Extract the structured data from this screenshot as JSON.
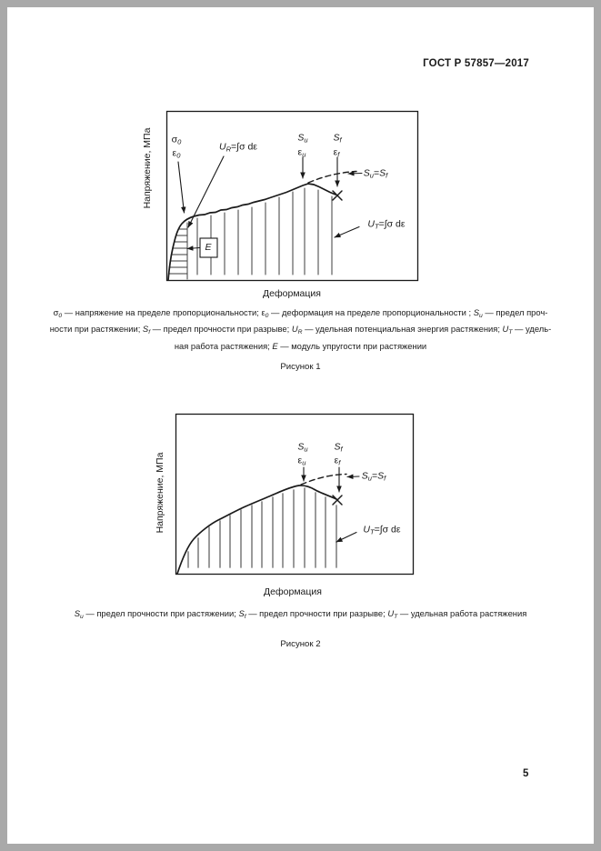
{
  "colors": {
    "surround": "#a9a9a9",
    "page_background": "#ffffff",
    "ink": "#1a1a1a",
    "hatch_figure1": "#3c3c3c",
    "hatch_figure2": "#8f8f8f"
  },
  "header": {
    "title": "ГОСТ Р 57857—2017"
  },
  "footer": {
    "page_number": "5"
  },
  "figure1": {
    "y_axis_label": "Напряжение, МПа",
    "x_axis_label": "Деформация",
    "figure_label": "Рисунок 1",
    "annotations": {
      "sigma0": [
        {
          "t": "σ"
        },
        {
          "t": "0",
          "s": 1
        }
      ],
      "eps0": [
        {
          "t": "ε"
        },
        {
          "t": "0",
          "s": 1
        }
      ],
      "ur_formula": [
        {
          "t": "U",
          "i": 1
        },
        {
          "t": "R",
          "s": 1
        },
        {
          "t": "=∫σ d"
        },
        {
          "t": "ε"
        }
      ],
      "su": [
        {
          "t": "S",
          "i": 1
        },
        {
          "t": "u",
          "s": 1
        }
      ],
      "eps_u": [
        {
          "t": "ε"
        },
        {
          "t": "u",
          "s": 1
        }
      ],
      "sf": [
        {
          "t": "S",
          "i": 1
        },
        {
          "t": "f",
          "s": 1
        }
      ],
      "eps_f": [
        {
          "t": "ε"
        },
        {
          "t": "f",
          "s": 1
        }
      ],
      "su_eq_sf": [
        {
          "t": "S",
          "i": 1
        },
        {
          "t": "u",
          "s": 1
        },
        {
          "t": "="
        },
        {
          "t": "S",
          "i": 1
        },
        {
          "t": "f",
          "s": 1
        }
      ],
      "ut_formula": [
        {
          "t": "U",
          "i": 1
        },
        {
          "t": "T",
          "s": 1
        },
        {
          "t": "=∫σ d"
        },
        {
          "t": "ε"
        }
      ],
      "e_modulus": [
        {
          "t": "E",
          "i": 1
        }
      ]
    },
    "caption_lines": [
      [
        {
          "t": "σ"
        },
        {
          "t": "0",
          "s": 1
        },
        {
          "t": " — напряжение на пределе пропорциональности; "
        },
        {
          "t": "ε"
        },
        {
          "t": "0",
          "s": 1
        },
        {
          "t": " — деформация на пределе пропорциональности ; "
        },
        {
          "t": "S",
          "i": 1
        },
        {
          "t": "u",
          "s": 1
        },
        {
          "t": " — предел проч-"
        }
      ],
      [
        {
          "t": "ности при растяжении; "
        },
        {
          "t": "S",
          "i": 1
        },
        {
          "t": "f",
          "s": 1
        },
        {
          "t": " — предел прочности при разрыве; "
        },
        {
          "t": "U",
          "i": 1
        },
        {
          "t": "R",
          "s": 1
        },
        {
          "t": " — удельная потенциальная энергия растяжения; "
        },
        {
          "t": "U",
          "i": 1
        },
        {
          "t": "T",
          "s": 1
        },
        {
          "t": " — удель-"
        }
      ],
      [
        {
          "t": "ная работа растяжения; "
        },
        {
          "t": "E",
          "i": 1
        },
        {
          "t": " — модуль упругости при растяжении"
        }
      ]
    ]
  },
  "figure2": {
    "y_axis_label": "Напряжение, МПа",
    "x_axis_label": "Деформация",
    "figure_label": "Рисунок 2",
    "annotations": {
      "su": [
        {
          "t": "S",
          "i": 1
        },
        {
          "t": "u",
          "s": 1
        }
      ],
      "eps_u": [
        {
          "t": "ε"
        },
        {
          "t": "u",
          "s": 1
        }
      ],
      "sf": [
        {
          "t": "S",
          "i": 1
        },
        {
          "t": "f",
          "s": 1
        }
      ],
      "eps_f": [
        {
          "t": "ε"
        },
        {
          "t": "f",
          "s": 1
        }
      ],
      "su_eq_sf": [
        {
          "t": "S",
          "i": 1
        },
        {
          "t": "u",
          "s": 1
        },
        {
          "t": "="
        },
        {
          "t": "S",
          "i": 1
        },
        {
          "t": "f",
          "s": 1
        }
      ],
      "ut_formula": [
        {
          "t": "U",
          "i": 1
        },
        {
          "t": "T",
          "s": 1
        },
        {
          "t": "=∫σ d"
        },
        {
          "t": "ε"
        }
      ]
    },
    "caption_lines": [
      [
        {
          "t": "S",
          "i": 1
        },
        {
          "t": "u",
          "s": 1
        },
        {
          "t": " — предел прочности при растяжении; "
        },
        {
          "t": "S",
          "i": 1
        },
        {
          "t": "f",
          "s": 1
        },
        {
          "t": " — предел прочности при разрыве; "
        },
        {
          "t": "U",
          "i": 1
        },
        {
          "t": "T",
          "s": 1
        },
        {
          "t": " — удельная работа растяжения"
        }
      ]
    ]
  }
}
